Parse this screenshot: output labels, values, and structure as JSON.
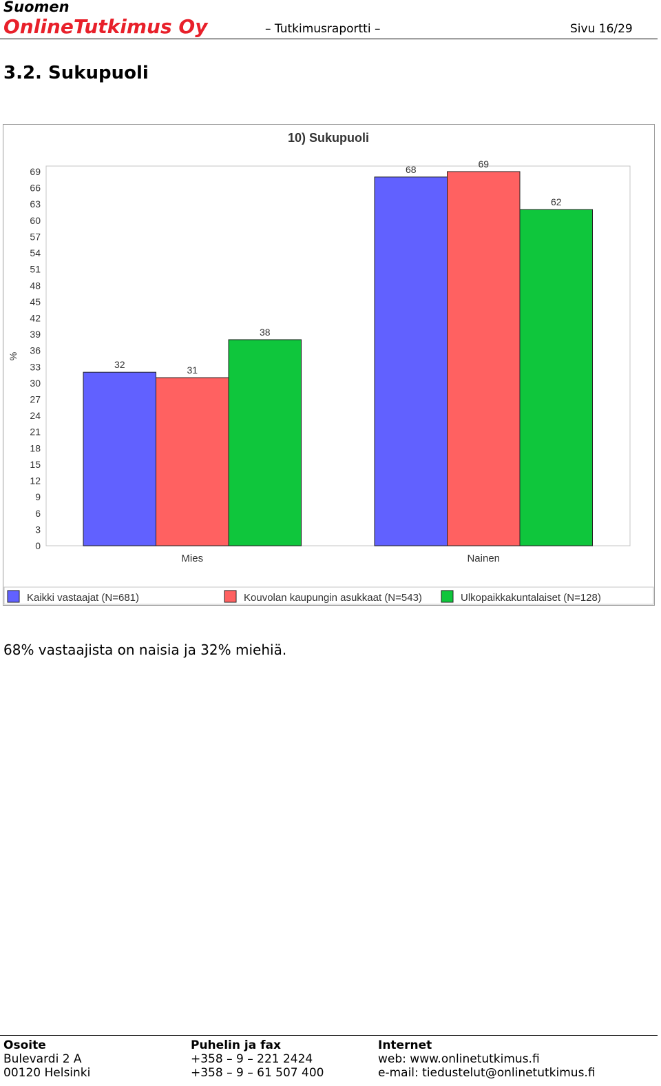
{
  "header": {
    "brand_line1": "Suomen",
    "brand_line2": "OnlineTutkimus Oy",
    "doc_type": "– Tutkimusraportti –",
    "page": "Sivu 16/29",
    "brand_color": "#e8202a"
  },
  "section": {
    "title": "3.2. Sukupuoli"
  },
  "chart_data": {
    "type": "bar",
    "title": "10) Sukupuoli",
    "ylabel": "%",
    "xlabel": "",
    "ylim": [
      0,
      69
    ],
    "yticks": [
      0,
      3,
      6,
      9,
      12,
      15,
      18,
      21,
      24,
      27,
      30,
      33,
      36,
      39,
      42,
      45,
      48,
      51,
      54,
      57,
      60,
      63,
      66,
      69
    ],
    "categories": [
      "Mies",
      "Nainen"
    ],
    "series": [
      {
        "name": "Kaikki vastaajat (N=681)",
        "values": [
          32,
          68
        ],
        "color": "#6161ff"
      },
      {
        "name": "Kouvolan kaupungin asukkaat (N=543)",
        "values": [
          31,
          69
        ],
        "color": "#ff6161"
      },
      {
        "name": "Ulkopaikkakuntalaiset (N=128)",
        "values": [
          38,
          62
        ],
        "color": "#0fc63c"
      }
    ],
    "legend_position": "bottom",
    "grid": false
  },
  "body": {
    "text": "68% vastaajista on naisia ja 32% miehiä."
  },
  "footer": {
    "col1": {
      "title": "Osoite",
      "line1": "Bulevardi 2 A",
      "line2": "00120 Helsinki"
    },
    "col2": {
      "title": "Puhelin ja fax",
      "line1": "+358 – 9 – 221 2424",
      "line2": "+358 – 9 – 61 507 400"
    },
    "col3": {
      "title": "Internet",
      "line1": "web: www.onlinetutkimus.fi",
      "line2": "e-mail: tiedustelut@onlinetutkimus.fi"
    }
  }
}
